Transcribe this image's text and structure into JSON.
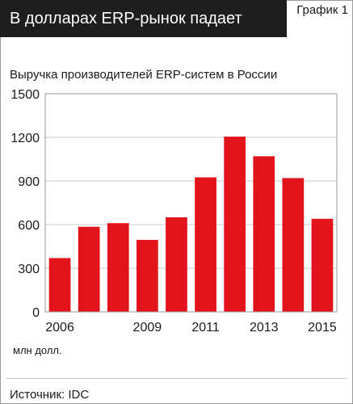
{
  "header": {
    "title": "В долларах ERP-рынок падает",
    "graph_label": "График 1"
  },
  "footer": {
    "source": "Источник: IDC"
  },
  "chart_data": {
    "type": "bar",
    "title": "Выручка производителей ERP-систем в России",
    "ylabel": "",
    "xlabel": "",
    "unit_label": "млн долл.",
    "ylim": [
      0,
      1500
    ],
    "y_ticks": [
      0,
      300,
      600,
      900,
      1200,
      1500
    ],
    "categories": [
      "2006",
      "2007",
      "2008",
      "2009",
      "2010",
      "2011",
      "2012",
      "2013",
      "2014",
      "2015"
    ],
    "x_tick_labels": [
      "2006",
      "",
      "",
      "2009",
      "",
      "2011",
      "",
      "2013",
      "",
      "2015"
    ],
    "values": [
      370,
      585,
      610,
      495,
      650,
      925,
      1205,
      1070,
      920,
      640
    ],
    "bar_color": "#e3131b",
    "grid": true
  }
}
